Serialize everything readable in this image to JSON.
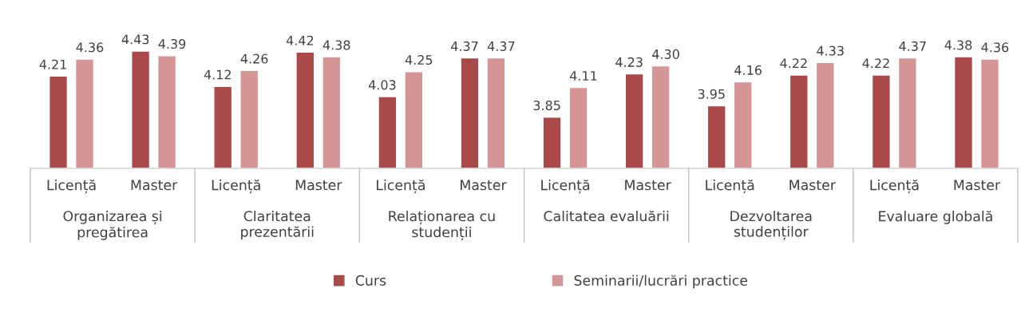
{
  "chart_data": {
    "type": "bar",
    "categories": [
      "Licență",
      "Master",
      "Licență",
      "Master",
      "Licență",
      "Master",
      "Licență",
      "Master",
      "Licență",
      "Master",
      "Licență",
      "Master"
    ],
    "series": [
      {
        "name": "Curs",
        "color": "#a9494a",
        "values": [
          4.21,
          4.43,
          4.12,
          4.42,
          4.03,
          4.37,
          3.85,
          4.23,
          3.95,
          4.22,
          4.22,
          4.38
        ],
        "value_labels": [
          "4.21",
          "4.43",
          "4.12",
          "4.42",
          "4.03",
          "4.37",
          "3.85",
          "4.23",
          "3.95",
          "4.22",
          "4.22",
          "4.38"
        ]
      },
      {
        "name": "Seminarii/lucrări practice",
        "color": "#d69595",
        "values": [
          4.36,
          4.39,
          4.26,
          4.38,
          4.25,
          4.37,
          4.11,
          4.3,
          4.16,
          4.33,
          4.37,
          4.36
        ],
        "value_labels": [
          "4.36",
          "4.39",
          "4.26",
          "4.38",
          "4.25",
          "4.37",
          "4.11",
          "4.30",
          "4.16",
          "4.33",
          "4.37",
          "4.36"
        ]
      }
    ],
    "annotations": [
      "Organizarea și\npregătirea",
      "Claritatea\nprezentării",
      "Relaționarea cu\nstudenții",
      "Calitatea evaluării",
      "Dezvoltarea\nstudenților",
      "Evaluare globală"
    ],
    "ylim": [
      3.4,
      4.43
    ],
    "legend": "bottom",
    "grid": false
  }
}
